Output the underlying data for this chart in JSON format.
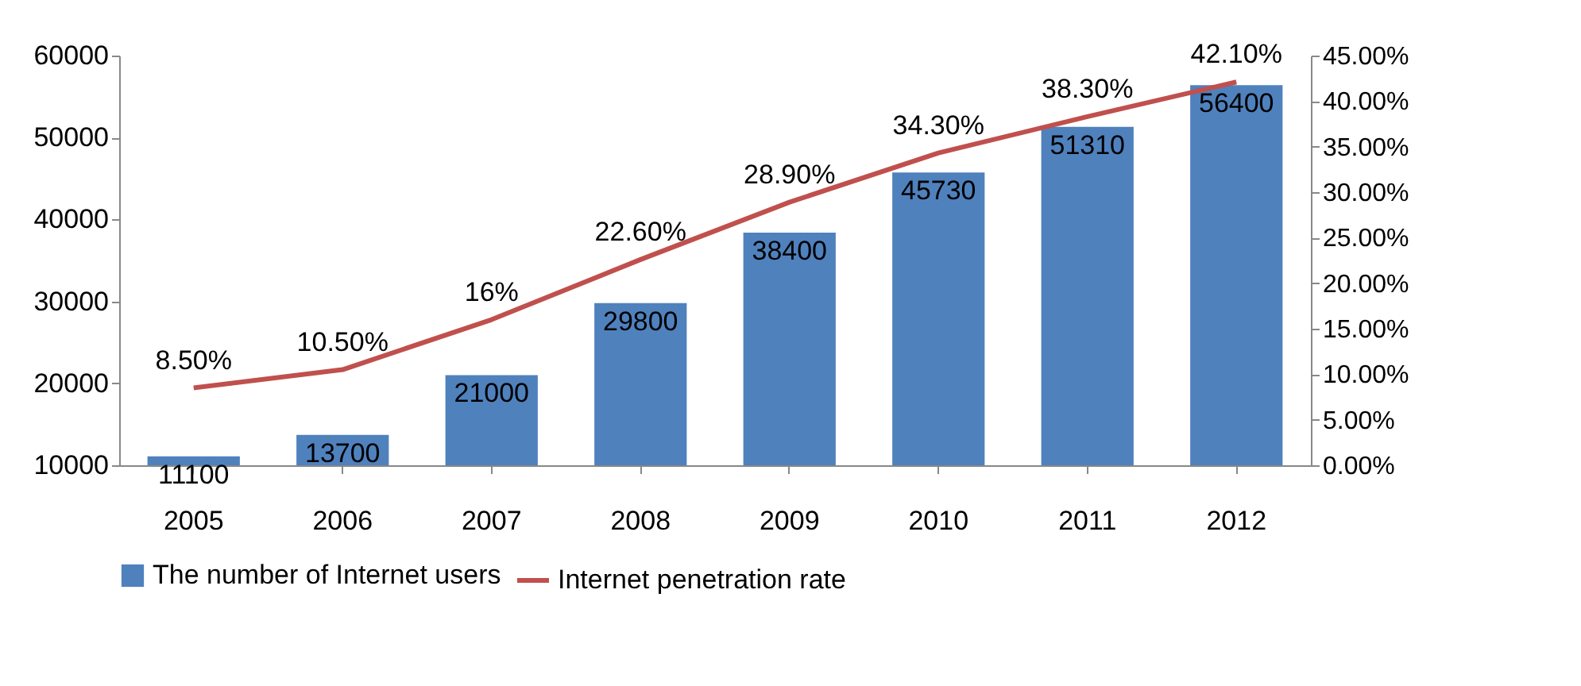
{
  "chart_data": {
    "type": "bar",
    "categories": [
      "2005",
      "2006",
      "2007",
      "2008",
      "2009",
      "2010",
      "2011",
      "2012"
    ],
    "series": [
      {
        "name": "The number of Internet users",
        "color": "#4f81bd",
        "values": [
          11100,
          13700,
          21000,
          29800,
          38400,
          45730,
          51310,
          56400
        ]
      },
      {
        "name": "Internet penetration rate",
        "type": "line",
        "axis": "y2",
        "color": "#c0504d",
        "values": [
          8.5,
          10.5,
          16,
          22.6,
          28.9,
          34.3,
          38.3,
          42.1
        ],
        "value_labels": [
          "8.50%",
          "10.50%",
          "16%",
          "22.60%",
          "28.90%",
          "34.30%",
          "38.30%",
          "42.10%"
        ]
      }
    ],
    "data_labels": true,
    "ylim": [
      10000,
      60000
    ],
    "yticks": [
      10000,
      20000,
      30000,
      40000,
      50000,
      60000
    ],
    "y2lim": [
      0,
      45
    ],
    "y2ticks": [
      {
        "value": 0,
        "label": "0.00%"
      },
      {
        "value": 5,
        "label": "5.00%"
      },
      {
        "value": 10,
        "label": "10.00%"
      },
      {
        "value": 15,
        "label": "15.00%"
      },
      {
        "value": 20,
        "label": "20.00%"
      },
      {
        "value": 25,
        "label": "25.00%"
      },
      {
        "value": 30,
        "label": "30.00%"
      },
      {
        "value": 35,
        "label": "35.00%"
      },
      {
        "value": 40,
        "label": "40.00%"
      },
      {
        "value": 45,
        "label": "45.00%"
      }
    ],
    "grid": false,
    "legend": "bottom",
    "marker": "none",
    "line_style": "solid"
  }
}
